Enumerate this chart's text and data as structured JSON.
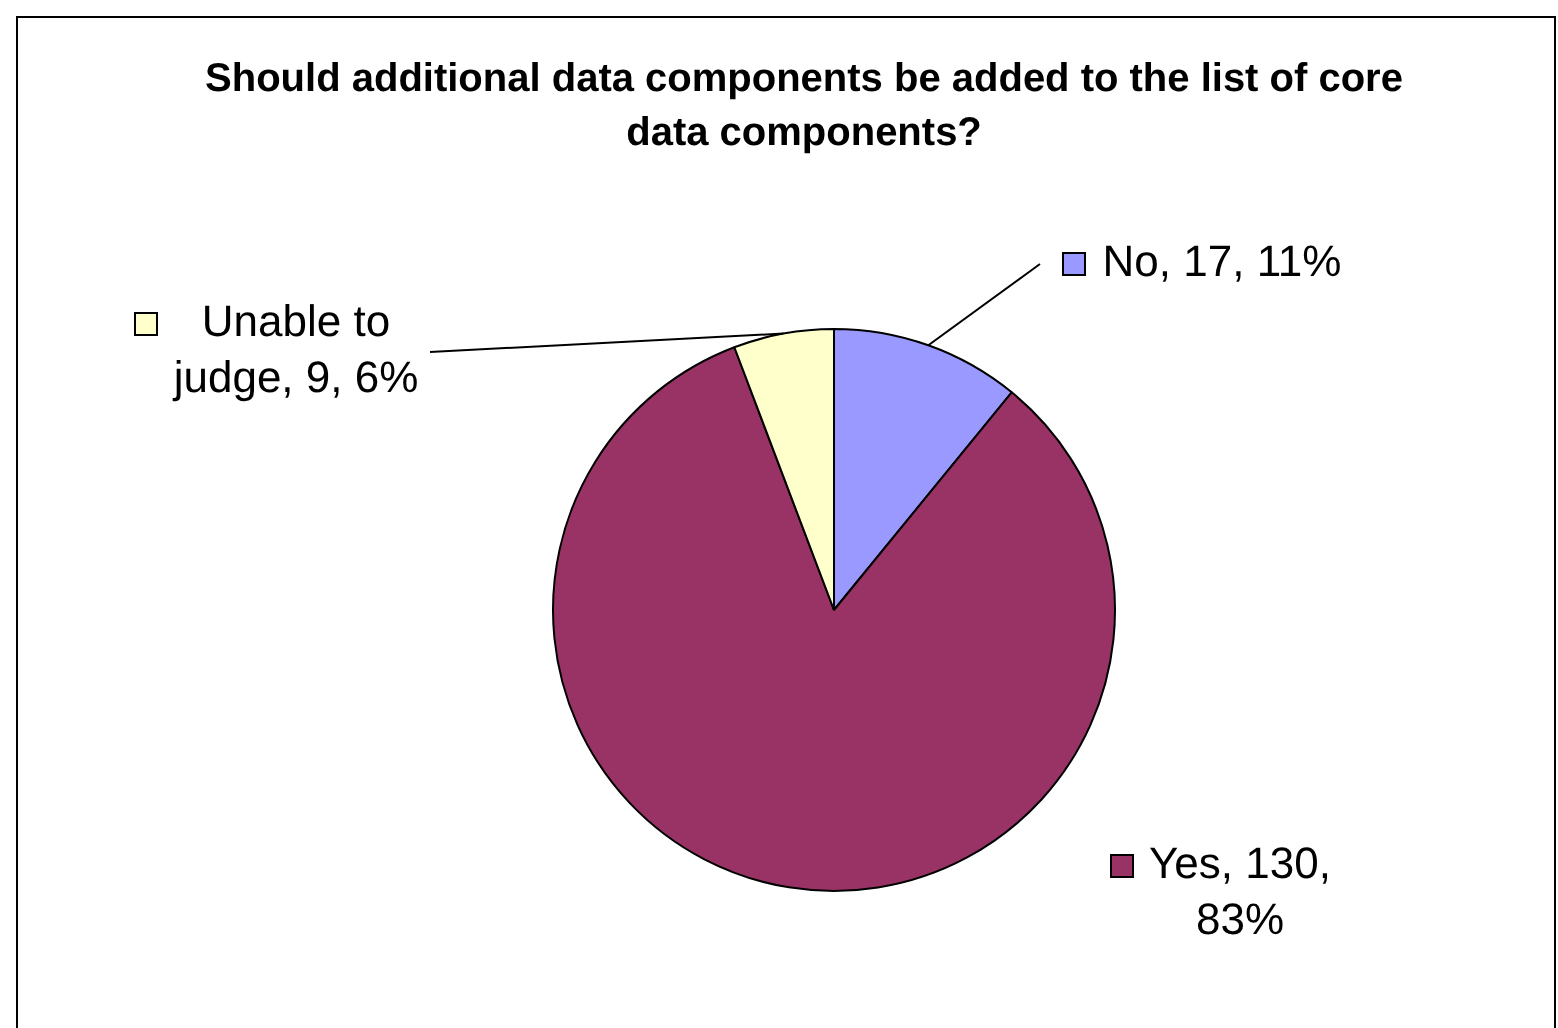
{
  "chart_data": {
    "type": "pie",
    "title": "Should additional data components be added to the list of core data components?",
    "categories": [
      "No",
      "Yes",
      "Unable to judge"
    ],
    "values": [
      17,
      130,
      9
    ],
    "colors": [
      "#9999ff",
      "#993366",
      "#ffffcc"
    ],
    "value_labels": [
      "17, 11%",
      "130, 83%",
      "9, 6%"
    ],
    "legend": "top left"
  }
}
